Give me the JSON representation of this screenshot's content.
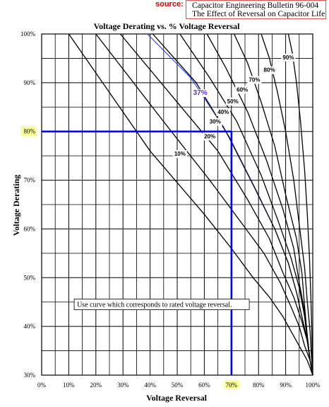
{
  "source": {
    "label": "source:",
    "lines": [
      "Capacitor Engineering Bulletin 96-004",
      "The Effect of Reversal on Capacitor Life"
    ]
  },
  "chart_data": {
    "type": "line",
    "title": "Voltage Derating vs. % Voltage Reversal",
    "xlabel": "Voltage Reversal",
    "ylabel": "Voltage Derating",
    "xlim": [
      0,
      100
    ],
    "ylim": [
      30,
      100
    ],
    "x_ticks": [
      "0%",
      "10%",
      "20%",
      "30%",
      "40%",
      "50%",
      "60%",
      "70%",
      "80%",
      "90%",
      "100%"
    ],
    "y_ticks": [
      "30%",
      "40%",
      "50%",
      "60%",
      "70%",
      "80%",
      "90%",
      "100%"
    ],
    "grid": true,
    "curve_labels": [
      "10%",
      "20%",
      "30%",
      "40%",
      "50%",
      "60%",
      "70%",
      "80%",
      "90%"
    ],
    "highlight_curve_label": "37%",
    "annotation": "Use curve which corresponds to rated voltage reversal.",
    "highlight_point": {
      "x": 70,
      "y": 80,
      "x_label": "70%",
      "y_label": "80%"
    },
    "colors": {
      "curves": "#000000",
      "highlight": "#1f3fff",
      "marker": "#0000ff",
      "tick_highlight": "#ffff99"
    },
    "series": [
      {
        "name": "10%",
        "x": [
          10,
          40,
          60,
          70,
          78,
          84,
          89,
          93,
          96,
          98,
          100
        ],
        "y": [
          100,
          76,
          63,
          56,
          50,
          46,
          42,
          38,
          35,
          33,
          30
        ]
      },
      {
        "name": "20%",
        "x": [
          20,
          45,
          62,
          74,
          82,
          88,
          92,
          95,
          97,
          99,
          100
        ],
        "y": [
          100,
          82,
          70,
          61,
          55,
          49,
          44,
          40,
          36,
          33,
          30
        ]
      },
      {
        "name": "30%",
        "x": [
          29,
          50,
          65,
          76,
          84,
          89,
          93,
          96,
          98,
          99,
          100
        ],
        "y": [
          100,
          86,
          76,
          66,
          58,
          51,
          46,
          41,
          37,
          33,
          30
        ]
      },
      {
        "name": "37%",
        "x": [
          39,
          55,
          67,
          78,
          86,
          91,
          94,
          96,
          98,
          99,
          100
        ],
        "y": [
          100,
          91,
          81,
          69,
          60,
          53,
          47,
          42,
          37,
          33,
          30
        ]
      },
      {
        "name": "40%",
        "x": [
          41,
          57,
          69,
          79,
          86,
          91,
          94,
          96,
          98,
          99,
          100
        ],
        "y": [
          100,
          90,
          79,
          68,
          60,
          53,
          47,
          42,
          37,
          33,
          30
        ]
      },
      {
        "name": "50%",
        "x": [
          51,
          62,
          72,
          81,
          87,
          92,
          95,
          97,
          98,
          99,
          100
        ],
        "y": [
          100,
          91,
          82,
          71,
          62,
          54,
          48,
          42,
          37,
          33,
          30
        ]
      },
      {
        "name": "60%",
        "x": [
          61,
          68,
          76,
          83,
          89,
          93,
          95,
          97,
          98,
          99,
          100
        ],
        "y": [
          100,
          93,
          84,
          74,
          64,
          56,
          49,
          43,
          38,
          33,
          30
        ]
      },
      {
        "name": "70%",
        "x": [
          71,
          76,
          81,
          86,
          90,
          94,
          96,
          97,
          98,
          99,
          100
        ],
        "y": [
          100,
          94,
          86,
          77,
          67,
          58,
          51,
          44,
          38,
          33,
          30
        ]
      },
      {
        "name": "80%",
        "x": [
          81,
          84,
          87,
          90,
          93,
          95,
          97,
          98,
          99,
          99.5,
          100
        ],
        "y": [
          100,
          95,
          88,
          80,
          70,
          61,
          52,
          45,
          39,
          34,
          30
        ]
      },
      {
        "name": "90%",
        "x": [
          91,
          92.5,
          94,
          95.5,
          97,
          98,
          98.8,
          99.3,
          99.6,
          99.8,
          100
        ],
        "y": [
          100,
          96,
          90,
          82,
          72,
          63,
          54,
          46,
          40,
          34,
          30
        ]
      }
    ]
  }
}
